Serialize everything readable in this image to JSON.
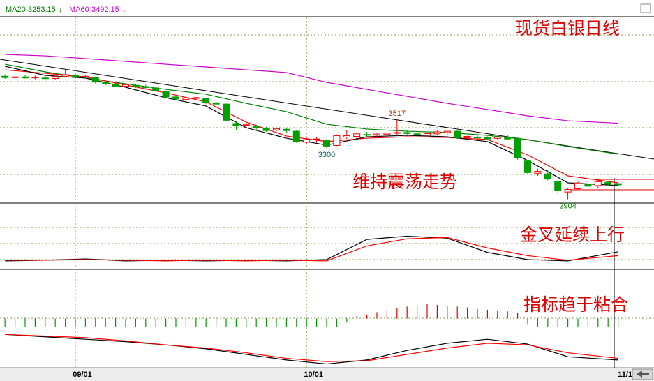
{
  "chart_data": {
    "type": "candlestick",
    "up_color": "#ff0000",
    "down_color": "#00a000",
    "ylim": [
      2880,
      4310
    ],
    "ohlc": [
      [
        3855,
        3870,
        3835,
        3845
      ],
      [
        3848,
        3862,
        3835,
        3850
      ],
      [
        3850,
        3865,
        3838,
        3842
      ],
      [
        3845,
        3860,
        3832,
        3848
      ],
      [
        3842,
        3858,
        3830,
        3838
      ],
      [
        3838,
        3860,
        3830,
        3852
      ],
      [
        3855,
        3905,
        3850,
        3868
      ],
      [
        3862,
        3875,
        3845,
        3850
      ],
      [
        3850,
        3865,
        3840,
        3855
      ],
      [
        3848,
        3852,
        3800,
        3810
      ],
      [
        3810,
        3820,
        3785,
        3795
      ],
      [
        3790,
        3800,
        3770,
        3775
      ],
      [
        3778,
        3795,
        3770,
        3790
      ],
      [
        3785,
        3795,
        3765,
        3775
      ],
      [
        3775,
        3790,
        3760,
        3768
      ],
      [
        3765,
        3775,
        3735,
        3745
      ],
      [
        3740,
        3745,
        3690,
        3695
      ],
      [
        3695,
        3705,
        3670,
        3680
      ],
      [
        3675,
        3690,
        3665,
        3688
      ],
      [
        3685,
        3695,
        3670,
        3690
      ],
      [
        3685,
        3690,
        3640,
        3650
      ],
      [
        3650,
        3660,
        3625,
        3640
      ],
      [
        3640,
        3645,
        3505,
        3515
      ],
      [
        3490,
        3510,
        3440,
        3475
      ],
      [
        3475,
        3495,
        3460,
        3480
      ],
      [
        3465,
        3480,
        3440,
        3455
      ],
      [
        3450,
        3465,
        3425,
        3435
      ],
      [
        3440,
        3460,
        3430,
        3450
      ],
      [
        3445,
        3455,
        3420,
        3435
      ],
      [
        3430,
        3440,
        3340,
        3350
      ],
      [
        3345,
        3380,
        3330,
        3365
      ],
      [
        3365,
        3385,
        3340,
        3370
      ],
      [
        3360,
        3365,
        3300,
        3315
      ],
      [
        3320,
        3405,
        3315,
        3395
      ],
      [
        3385,
        3440,
        3370,
        3395
      ],
      [
        3390,
        3420,
        3375,
        3410
      ],
      [
        3405,
        3425,
        3390,
        3400
      ],
      [
        3400,
        3415,
        3385,
        3408
      ],
      [
        3405,
        3430,
        3390,
        3415
      ],
      [
        3415,
        3517,
        3400,
        3420
      ],
      [
        3420,
        3440,
        3405,
        3412
      ],
      [
        3410,
        3425,
        3395,
        3405
      ],
      [
        3400,
        3420,
        3390,
        3412
      ],
      [
        3410,
        3435,
        3400,
        3425
      ],
      [
        3420,
        3440,
        3405,
        3430
      ],
      [
        3430,
        3435,
        3370,
        3380
      ],
      [
        3380,
        3395,
        3365,
        3390
      ],
      [
        3385,
        3400,
        3370,
        3378
      ],
      [
        3380,
        3390,
        3360,
        3370
      ],
      [
        3375,
        3395,
        3360,
        3385
      ],
      [
        3385,
        3400,
        3365,
        3370
      ],
      [
        3375,
        3385,
        3210,
        3225
      ],
      [
        3200,
        3210,
        3100,
        3110
      ],
      [
        3105,
        3140,
        3085,
        3120
      ],
      [
        3100,
        3130,
        3050,
        3060
      ],
      [
        3040,
        3050,
        2950,
        2970
      ],
      [
        2960,
        2990,
        2904,
        2980
      ],
      [
        2985,
        3040,
        2975,
        3030
      ],
      [
        3020,
        3040,
        3000,
        3005
      ],
      [
        3010,
        3050,
        2990,
        3040
      ],
      [
        3035,
        3045,
        3010,
        3020
      ],
      [
        3025,
        3035,
        2960,
        3015
      ]
    ],
    "x": [
      0,
      4,
      8,
      12,
      16,
      20,
      24,
      28,
      32,
      36,
      40,
      44,
      48,
      52,
      56,
      61
    ],
    "series": [
      {
        "name": "MA20",
        "color": "#008000",
        "header_value": 3253.15,
        "arrow": "↓",
        "values": [
          3948,
          3889,
          3841,
          3797,
          3754,
          3716,
          3646,
          3581,
          3484,
          3447,
          3430,
          3420,
          3398,
          3366,
          3312,
          3253
        ]
      },
      {
        "name": "MA60",
        "color": "#cc00cc",
        "header_value": 3492.15,
        "arrow": "↓",
        "values": [
          4024,
          4013,
          3992,
          3970,
          3948,
          3927,
          3905,
          3884,
          3808,
          3754,
          3700,
          3646,
          3598,
          3549,
          3511,
          3492
        ]
      },
      {
        "color": "#ff0000",
        "values": [
          3905,
          3878,
          3851,
          3787,
          3727,
          3657,
          3501,
          3393,
          3350,
          3376,
          3387,
          3382,
          3366,
          3247,
          3085,
          3031
        ]
      },
      {
        "color": "#000000",
        "values": [
          3932,
          3862,
          3841,
          3770,
          3689,
          3625,
          3457,
          3376,
          3323,
          3387,
          3398,
          3387,
          3350,
          3204,
          3031,
          3010
        ]
      }
    ],
    "annotations": [
      {
        "value": 3517,
        "index": 39,
        "position": "above",
        "color": "#993300"
      },
      {
        "value": 3300,
        "index": 32,
        "position": "below",
        "color": "#006060"
      },
      {
        "value": 2904,
        "index": 56,
        "position": "below",
        "color": "#008000"
      }
    ],
    "x_labels": [
      {
        "index": 7,
        "label": "09/01"
      },
      {
        "index": 30,
        "label": "10/01"
      },
      {
        "index": 61,
        "label": "11/1"
      }
    ],
    "notes": [
      "现货白银日线",
      "维持震荡走势",
      "金叉延续上行",
      "指标趋于粘合"
    ],
    "indicator_panels": [
      {
        "type": "line",
        "ylim": [
          0,
          100
        ],
        "x": [
          0,
          4,
          8,
          12,
          16,
          20,
          24,
          28,
          32,
          36,
          40,
          44,
          48,
          52,
          56,
          61
        ],
        "series": [
          {
            "color": "#000000",
            "values": [
              12,
              13,
              15,
              12,
              13,
              12,
              13,
              12,
              14,
              45,
              50,
              47,
              25,
              14,
              12,
              26
            ]
          },
          {
            "color": "#ff0000",
            "values": [
              13,
              13,
              14,
              13,
              12,
              13,
              12,
              13,
              12,
              35,
              46,
              48,
              32,
              20,
              13,
              20
            ]
          }
        ]
      },
      {
        "type": "histogram",
        "ylim": [
          -60,
          60
        ],
        "up_color": "#e00000",
        "down_color": "#009900",
        "bars": [
          -10,
          -10,
          -10,
          -10,
          -10,
          -10,
          -10,
          -10,
          -10,
          -10,
          -10,
          -10,
          -10,
          -10,
          -10,
          -10,
          -10,
          -10,
          -10,
          -10,
          -10,
          -10,
          -10,
          -10,
          -10,
          -10,
          -10,
          -10,
          -10,
          -10,
          -10,
          -10,
          -10,
          -10,
          -5,
          3,
          5,
          8,
          10,
          13,
          15,
          17,
          18,
          17,
          16,
          15,
          14,
          12,
          11,
          10,
          9,
          7,
          -8,
          -10,
          -10,
          -10,
          -10,
          -10,
          -10,
          -10,
          -10,
          -10
        ],
        "x": [
          0,
          4,
          8,
          12,
          16,
          20,
          24,
          28,
          32,
          36,
          40,
          44,
          48,
          52,
          56,
          61
        ],
        "series": [
          {
            "color": "#000000",
            "values": [
              -20,
              -23,
              -26,
              -29,
              -33,
              -38,
              -45,
              -52,
              -57,
              -52,
              -40,
              -31,
              -26,
              -32,
              -48,
              -52
            ]
          },
          {
            "color": "#ff0000",
            "values": [
              -20,
              -22,
              -24,
              -28,
              -33,
              -37,
              -43,
              -50,
              -54,
              -53,
              -45,
              -37,
              -31,
              -33,
              -43,
              -50
            ]
          }
        ]
      }
    ]
  }
}
